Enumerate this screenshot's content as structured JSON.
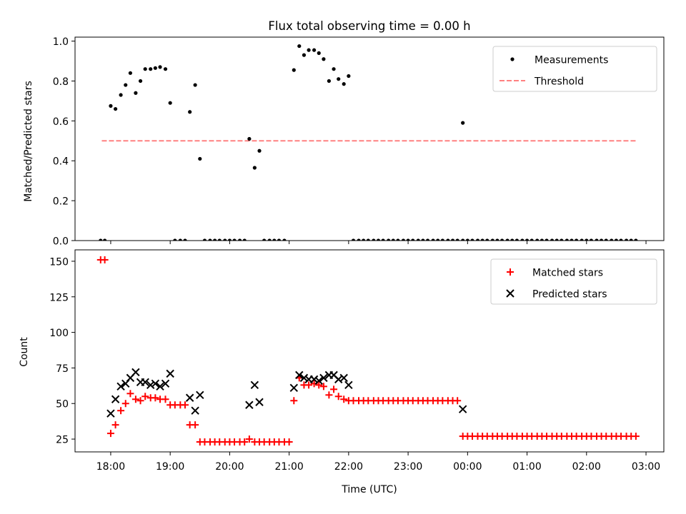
{
  "figure": {
    "title": "Flux total observing time = 0.00 h",
    "xlabel": "Time (UTC)",
    "x_tick_labels": [
      "18:00",
      "19:00",
      "20:00",
      "21:00",
      "22:00",
      "23:00",
      "00:00",
      "01:00",
      "02:00",
      "03:00"
    ]
  },
  "chart_data": [
    {
      "type": "scatter",
      "ylabel": "Matched/Predicted stars",
      "ylim": [
        0,
        1.02
      ],
      "xlim": [
        -0.6,
        9.3
      ],
      "x_unit": "hours since 18:00 UTC",
      "y_ticks": [
        "0.0",
        "0.2",
        "0.4",
        "0.6",
        "0.8",
        "1.0"
      ],
      "y_tick_values": [
        0,
        0.2,
        0.4,
        0.6,
        0.8,
        1.0
      ],
      "legend": {
        "position": "top-right",
        "entries": [
          {
            "label": "Measurements",
            "marker": "dot",
            "color": "#000000"
          },
          {
            "label": "Threshold",
            "marker": "dashed-line",
            "color": "#ff8080"
          }
        ]
      },
      "threshold": {
        "value": 0.5,
        "x_start": -0.15,
        "x_end": 8.85
      },
      "series": [
        {
          "name": "Measurements",
          "color": "#000000",
          "points": [
            [
              -0.17,
              0
            ],
            [
              -0.1,
              0
            ],
            [
              0,
              0.675
            ],
            [
              0.08,
              0.66
            ],
            [
              0.17,
              0.73
            ],
            [
              0.25,
              0.78
            ],
            [
              0.33,
              0.84
            ],
            [
              0.42,
              0.74
            ],
            [
              0.5,
              0.8
            ],
            [
              0.58,
              0.86
            ],
            [
              0.67,
              0.86
            ],
            [
              0.75,
              0.865
            ],
            [
              0.83,
              0.87
            ],
            [
              0.92,
              0.86
            ],
            [
              1.0,
              0.69
            ],
            [
              1.08,
              0
            ],
            [
              1.17,
              0
            ],
            [
              1.25,
              0
            ],
            [
              1.33,
              0.645
            ],
            [
              1.42,
              0.78
            ],
            [
              1.5,
              0.41
            ],
            [
              1.58,
              0
            ],
            [
              1.67,
              0
            ],
            [
              1.75,
              0
            ],
            [
              1.83,
              0
            ],
            [
              1.92,
              0
            ],
            [
              2.0,
              0
            ],
            [
              2.08,
              0
            ],
            [
              2.17,
              0
            ],
            [
              2.25,
              0
            ],
            [
              2.33,
              0.51
            ],
            [
              2.42,
              0.365
            ],
            [
              2.5,
              0.45
            ],
            [
              2.58,
              0
            ],
            [
              2.67,
              0
            ],
            [
              2.75,
              0
            ],
            [
              2.83,
              0
            ],
            [
              2.92,
              0
            ],
            [
              3.08,
              0.855
            ],
            [
              3.17,
              0.975
            ],
            [
              3.25,
              0.93
            ],
            [
              3.33,
              0.955
            ],
            [
              3.42,
              0.955
            ],
            [
              3.5,
              0.94
            ],
            [
              3.58,
              0.91
            ],
            [
              3.67,
              0.8
            ],
            [
              3.75,
              0.86
            ],
            [
              3.83,
              0.81
            ],
            [
              3.92,
              0.785
            ],
            [
              4.0,
              0.825
            ],
            [
              4.08,
              0
            ],
            [
              4.17,
              0
            ],
            [
              4.25,
              0
            ],
            [
              4.33,
              0
            ],
            [
              4.42,
              0
            ],
            [
              4.5,
              0
            ],
            [
              4.58,
              0
            ],
            [
              4.67,
              0
            ],
            [
              4.75,
              0
            ],
            [
              4.83,
              0
            ],
            [
              4.92,
              0
            ],
            [
              5.0,
              0
            ],
            [
              5.08,
              0
            ],
            [
              5.17,
              0
            ],
            [
              5.25,
              0
            ],
            [
              5.33,
              0
            ],
            [
              5.42,
              0
            ],
            [
              5.5,
              0
            ],
            [
              5.58,
              0
            ],
            [
              5.67,
              0
            ],
            [
              5.75,
              0
            ],
            [
              5.83,
              0
            ],
            [
              5.92,
              0
            ],
            [
              6.0,
              0
            ],
            [
              6.08,
              0
            ],
            [
              6.17,
              0
            ],
            [
              6.25,
              0
            ],
            [
              6.33,
              0
            ],
            [
              6.42,
              0
            ],
            [
              6.5,
              0
            ],
            [
              6.58,
              0
            ],
            [
              6.67,
              0
            ],
            [
              6.75,
              0
            ],
            [
              6.83,
              0
            ],
            [
              6.92,
              0
            ],
            [
              7.0,
              0
            ],
            [
              7.08,
              0
            ],
            [
              7.17,
              0
            ],
            [
              7.25,
              0
            ],
            [
              7.33,
              0
            ],
            [
              7.42,
              0
            ],
            [
              7.5,
              0
            ],
            [
              7.58,
              0
            ],
            [
              7.67,
              0
            ],
            [
              7.75,
              0
            ],
            [
              7.83,
              0
            ],
            [
              7.92,
              0
            ],
            [
              8.0,
              0
            ],
            [
              8.08,
              0
            ],
            [
              8.17,
              0
            ],
            [
              8.25,
              0
            ],
            [
              8.33,
              0
            ],
            [
              8.42,
              0
            ],
            [
              8.5,
              0
            ],
            [
              8.58,
              0
            ],
            [
              8.67,
              0
            ],
            [
              8.75,
              0
            ],
            [
              8.83,
              0
            ],
            [
              5.92,
              0.59
            ]
          ]
        }
      ]
    },
    {
      "type": "scatter",
      "ylabel": "Count",
      "ylim": [
        16,
        158
      ],
      "xlim": [
        -0.6,
        9.3
      ],
      "x_unit": "hours since 18:00 UTC",
      "y_ticks": [
        "25",
        "50",
        "75",
        "100",
        "125",
        "150"
      ],
      "y_tick_values": [
        25,
        50,
        75,
        100,
        125,
        150
      ],
      "legend": {
        "position": "top-right",
        "entries": [
          {
            "label": "Matched stars",
            "marker": "plus",
            "color": "#ff0000"
          },
          {
            "label": "Predicted stars",
            "marker": "x",
            "color": "#000000"
          }
        ]
      },
      "series": [
        {
          "name": "Matched stars",
          "color": "#ff0000",
          "marker": "plus",
          "points": [
            [
              -0.17,
              151
            ],
            [
              -0.1,
              151
            ],
            [
              0,
              29
            ],
            [
              0.08,
              35
            ],
            [
              0.17,
              45
            ],
            [
              0.25,
              50
            ],
            [
              0.33,
              57
            ],
            [
              0.42,
              53
            ],
            [
              0.5,
              52
            ],
            [
              0.58,
              55
            ],
            [
              0.67,
              54
            ],
            [
              0.75,
              54
            ],
            [
              0.83,
              53
            ],
            [
              0.92,
              53
            ],
            [
              1.0,
              49
            ],
            [
              1.08,
              49
            ],
            [
              1.17,
              49
            ],
            [
              1.25,
              49
            ],
            [
              1.33,
              35
            ],
            [
              1.42,
              35
            ],
            [
              1.5,
              23
            ],
            [
              1.58,
              23
            ],
            [
              1.67,
              23
            ],
            [
              1.75,
              23
            ],
            [
              1.83,
              23
            ],
            [
              1.92,
              23
            ],
            [
              2.0,
              23
            ],
            [
              2.08,
              23
            ],
            [
              2.17,
              23
            ],
            [
              2.25,
              23
            ],
            [
              2.33,
              25
            ],
            [
              2.42,
              23
            ],
            [
              2.5,
              23
            ],
            [
              2.58,
              23
            ],
            [
              2.67,
              23
            ],
            [
              2.75,
              23
            ],
            [
              2.83,
              23
            ],
            [
              2.92,
              23
            ],
            [
              3.0,
              23
            ],
            [
              3.08,
              52
            ],
            [
              3.17,
              68
            ],
            [
              3.25,
              63
            ],
            [
              3.33,
              63
            ],
            [
              3.42,
              64
            ],
            [
              3.5,
              63
            ],
            [
              3.58,
              62
            ],
            [
              3.67,
              56
            ],
            [
              3.75,
              60
            ],
            [
              3.83,
              55
            ],
            [
              3.92,
              53
            ],
            [
              4.0,
              52
            ],
            [
              4.08,
              52
            ],
            [
              4.17,
              52
            ],
            [
              4.25,
              52
            ],
            [
              4.33,
              52
            ],
            [
              4.42,
              52
            ],
            [
              4.5,
              52
            ],
            [
              4.58,
              52
            ],
            [
              4.67,
              52
            ],
            [
              4.75,
              52
            ],
            [
              4.83,
              52
            ],
            [
              4.92,
              52
            ],
            [
              5.0,
              52
            ],
            [
              5.08,
              52
            ],
            [
              5.17,
              52
            ],
            [
              5.25,
              52
            ],
            [
              5.33,
              52
            ],
            [
              5.42,
              52
            ],
            [
              5.5,
              52
            ],
            [
              5.58,
              52
            ],
            [
              5.67,
              52
            ],
            [
              5.75,
              52
            ],
            [
              5.83,
              52
            ],
            [
              5.92,
              27
            ],
            [
              6.0,
              27
            ],
            [
              6.08,
              27
            ],
            [
              6.17,
              27
            ],
            [
              6.25,
              27
            ],
            [
              6.33,
              27
            ],
            [
              6.42,
              27
            ],
            [
              6.5,
              27
            ],
            [
              6.58,
              27
            ],
            [
              6.67,
              27
            ],
            [
              6.75,
              27
            ],
            [
              6.83,
              27
            ],
            [
              6.92,
              27
            ],
            [
              7.0,
              27
            ],
            [
              7.08,
              27
            ],
            [
              7.17,
              27
            ],
            [
              7.25,
              27
            ],
            [
              7.33,
              27
            ],
            [
              7.42,
              27
            ],
            [
              7.5,
              27
            ],
            [
              7.58,
              27
            ],
            [
              7.67,
              27
            ],
            [
              7.75,
              27
            ],
            [
              7.83,
              27
            ],
            [
              7.92,
              27
            ],
            [
              8.0,
              27
            ],
            [
              8.08,
              27
            ],
            [
              8.17,
              27
            ],
            [
              8.25,
              27
            ],
            [
              8.33,
              27
            ],
            [
              8.42,
              27
            ],
            [
              8.5,
              27
            ],
            [
              8.58,
              27
            ],
            [
              8.67,
              27
            ],
            [
              8.75,
              27
            ],
            [
              8.83,
              27
            ]
          ]
        },
        {
          "name": "Predicted stars",
          "color": "#000000",
          "marker": "x",
          "points": [
            [
              0,
              43
            ],
            [
              0.08,
              53
            ],
            [
              0.17,
              62
            ],
            [
              0.25,
              64
            ],
            [
              0.33,
              68
            ],
            [
              0.42,
              72
            ],
            [
              0.5,
              65
            ],
            [
              0.58,
              65
            ],
            [
              0.67,
              63
            ],
            [
              0.75,
              64
            ],
            [
              0.83,
              62
            ],
            [
              0.92,
              64
            ],
            [
              1.0,
              71
            ],
            [
              1.33,
              54
            ],
            [
              1.42,
              45
            ],
            [
              1.5,
              56
            ],
            [
              2.33,
              49
            ],
            [
              2.42,
              63
            ],
            [
              2.5,
              51
            ],
            [
              3.08,
              61
            ],
            [
              3.17,
              70
            ],
            [
              3.25,
              68
            ],
            [
              3.33,
              67
            ],
            [
              3.42,
              67
            ],
            [
              3.5,
              66
            ],
            [
              3.58,
              68
            ],
            [
              3.67,
              70
            ],
            [
              3.75,
              70
            ],
            [
              3.83,
              67
            ],
            [
              3.92,
              68
            ],
            [
              4.0,
              63
            ],
            [
              5.92,
              46
            ]
          ]
        }
      ]
    }
  ]
}
